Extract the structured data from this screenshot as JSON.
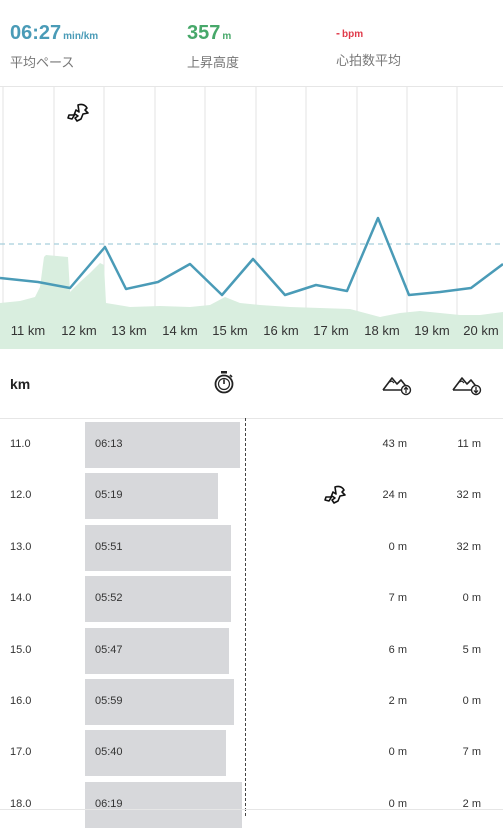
{
  "stats": {
    "pace": {
      "value": "06:27",
      "unit": "min/km",
      "label": "平均ペース"
    },
    "elevation": {
      "value": "357",
      "unit": "m",
      "label": "上昇高度"
    },
    "heart_rate": {
      "value": "-",
      "unit": "bpm",
      "label": "心拍数平均"
    }
  },
  "chart": {
    "km_labels": [
      "11 km",
      "12 km",
      "13 km",
      "14 km",
      "15 km",
      "16 km",
      "17 km",
      "18 km",
      "19 km",
      "20 km"
    ]
  },
  "table": {
    "header": {
      "km": "km",
      "pace_icon": "stopwatch-icon",
      "ascent_icon": "mountain-ascent-icon",
      "descent_icon": "mountain-descent-icon"
    },
    "rows": [
      {
        "km": "11.0",
        "pace": "06:13",
        "ascent": "43 m",
        "descent": "11 m",
        "pace_fraction": 0.969
      },
      {
        "km": "12.0",
        "pace": "05:19",
        "ascent": "24 m",
        "descent": "32 m",
        "pace_fraction": 0.829
      },
      {
        "km": "13.0",
        "pace": "05:51",
        "ascent": "0 m",
        "descent": "32 m",
        "pace_fraction": 0.912
      },
      {
        "km": "14.0",
        "pace": "05:52",
        "ascent": "7 m",
        "descent": "0 m",
        "pace_fraction": 0.915
      },
      {
        "km": "15.0",
        "pace": "05:47",
        "ascent": "6 m",
        "descent": "5 m",
        "pace_fraction": 0.902
      },
      {
        "km": "16.0",
        "pace": "05:59",
        "ascent": "2 m",
        "descent": "0 m",
        "pace_fraction": 0.933
      },
      {
        "km": "17.0",
        "pace": "05:40",
        "ascent": "0 m",
        "descent": "7 m",
        "pace_fraction": 0.883
      },
      {
        "km": "18.0",
        "pace": "06:19",
        "ascent": "0 m",
        "descent": "2 m",
        "pace_fraction": 0.984
      }
    ],
    "runner_icon": "runner-icon"
  },
  "colors": {
    "pace": "#4a9bb7",
    "elevation": "#47a86a",
    "heart_rate": "#e03a4a",
    "bar": "#d7d8db",
    "elevation_fill": "#d9eedf"
  }
}
